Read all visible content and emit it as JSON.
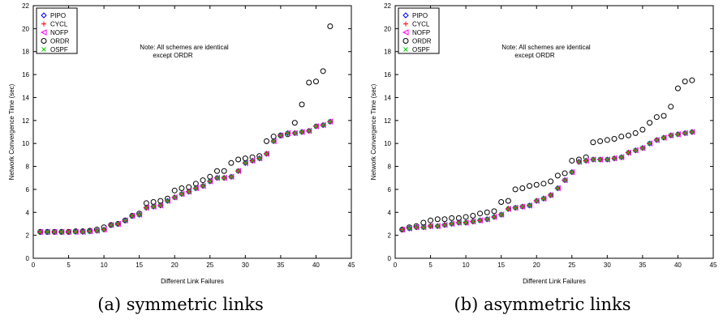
{
  "chart_data": [
    {
      "type": "scatter",
      "caption": "(a) symmetric links",
      "xlabel": "Different Link Failures",
      "ylabel": "Network Convergence Time (sec)",
      "xlim": [
        0,
        45
      ],
      "ylim": [
        0,
        22
      ],
      "xticks": [
        0,
        5,
        10,
        15,
        20,
        25,
        30,
        35,
        40,
        45
      ],
      "yticks": [
        0,
        2,
        4,
        6,
        8,
        10,
        12,
        14,
        16,
        18,
        20,
        22
      ],
      "note": [
        "Note: All schemes are identical",
        "except ORDR"
      ],
      "legend_position": "top-left",
      "x": [
        1,
        2,
        3,
        4,
        5,
        6,
        7,
        8,
        9,
        10,
        11,
        12,
        13,
        14,
        15,
        16,
        17,
        18,
        19,
        20,
        21,
        22,
        23,
        24,
        25,
        26,
        27,
        28,
        29,
        30,
        31,
        32,
        33,
        34,
        35,
        36,
        37,
        38,
        39,
        40,
        41,
        42
      ],
      "series": [
        {
          "name": "PIPO",
          "marker": "diamond",
          "color": "#0000ff",
          "values": [
            2.3,
            2.3,
            2.3,
            2.3,
            2.3,
            2.3,
            2.3,
            2.35,
            2.4,
            2.5,
            2.9,
            3.0,
            3.3,
            3.7,
            3.8,
            4.4,
            4.5,
            4.6,
            5.0,
            5.3,
            5.6,
            5.8,
            6.1,
            6.3,
            6.7,
            7.0,
            7.0,
            7.1,
            7.6,
            8.3,
            8.5,
            8.7,
            9.1,
            10.2,
            10.7,
            10.9,
            10.9,
            11.0,
            11.1,
            11.5,
            11.6,
            11.9
          ]
        },
        {
          "name": "CYCL",
          "marker": "plus",
          "color": "#ff0000",
          "values": [
            2.3,
            2.3,
            2.3,
            2.3,
            2.3,
            2.3,
            2.3,
            2.35,
            2.4,
            2.5,
            2.9,
            3.0,
            3.3,
            3.7,
            3.8,
            4.4,
            4.5,
            4.6,
            5.0,
            5.3,
            5.6,
            5.8,
            6.1,
            6.3,
            6.7,
            7.0,
            7.0,
            7.1,
            7.6,
            8.3,
            8.5,
            8.7,
            9.1,
            10.2,
            10.7,
            10.9,
            10.9,
            11.0,
            11.1,
            11.5,
            11.6,
            11.9
          ]
        },
        {
          "name": "NOFP",
          "marker": "triangle-left",
          "color": "#ff00ff",
          "values": [
            2.3,
            2.3,
            2.3,
            2.3,
            2.3,
            2.3,
            2.3,
            2.35,
            2.4,
            2.5,
            2.9,
            3.0,
            3.3,
            3.7,
            3.8,
            4.4,
            4.5,
            4.6,
            5.0,
            5.3,
            5.6,
            5.8,
            6.1,
            6.3,
            6.7,
            7.0,
            7.0,
            7.1,
            7.6,
            8.3,
            8.5,
            8.7,
            9.1,
            10.2,
            10.7,
            10.9,
            10.9,
            11.0,
            11.1,
            11.5,
            11.6,
            11.9
          ]
        },
        {
          "name": "ORDR",
          "marker": "circle",
          "color": "#000000",
          "values": [
            2.3,
            2.3,
            2.3,
            2.3,
            2.3,
            2.35,
            2.35,
            2.4,
            2.5,
            2.7,
            2.9,
            3.0,
            3.3,
            3.7,
            3.9,
            4.8,
            4.9,
            5.0,
            5.2,
            5.9,
            6.1,
            6.2,
            6.5,
            6.8,
            7.1,
            7.6,
            7.6,
            8.3,
            8.6,
            8.7,
            8.8,
            8.9,
            10.2,
            10.6,
            10.7,
            10.8,
            11.8,
            13.4,
            15.3,
            15.4,
            16.3,
            20.2
          ]
        },
        {
          "name": "OSPF",
          "marker": "x",
          "color": "#00cc00",
          "values": [
            2.3,
            2.3,
            2.3,
            2.3,
            2.3,
            2.3,
            2.3,
            2.35,
            2.4,
            2.5,
            2.9,
            3.0,
            3.3,
            3.7,
            3.8,
            4.4,
            4.5,
            4.6,
            5.0,
            5.3,
            5.6,
            5.8,
            6.1,
            6.3,
            6.7,
            7.0,
            7.0,
            7.1,
            7.6,
            8.3,
            8.5,
            8.7,
            9.1,
            10.2,
            10.7,
            10.9,
            10.9,
            11.0,
            11.1,
            11.5,
            11.6,
            11.9
          ]
        }
      ]
    },
    {
      "type": "scatter",
      "caption": "(b) asymmetric links",
      "xlabel": "Different Link Failures",
      "ylabel": "Network Convergence Time (sec)",
      "xlim": [
        0,
        45
      ],
      "ylim": [
        0,
        22
      ],
      "xticks": [
        0,
        5,
        10,
        15,
        20,
        25,
        30,
        35,
        40,
        45
      ],
      "yticks": [
        0,
        2,
        4,
        6,
        8,
        10,
        12,
        14,
        16,
        18,
        20,
        22
      ],
      "note": [
        "Note: All schemes are identical",
        "except ORDR"
      ],
      "legend_position": "top-left",
      "x": [
        1,
        2,
        3,
        4,
        5,
        6,
        7,
        8,
        9,
        10,
        11,
        12,
        13,
        14,
        15,
        16,
        17,
        18,
        19,
        20,
        21,
        22,
        23,
        24,
        25,
        26,
        27,
        28,
        29,
        30,
        31,
        32,
        33,
        34,
        35,
        36,
        37,
        38,
        39,
        40,
        41,
        42
      ],
      "series": [
        {
          "name": "PIPO",
          "marker": "diamond",
          "color": "#0000ff",
          "values": [
            2.5,
            2.6,
            2.7,
            2.7,
            2.8,
            2.8,
            2.9,
            3.0,
            3.1,
            3.1,
            3.2,
            3.3,
            3.4,
            3.6,
            3.8,
            4.3,
            4.4,
            4.5,
            4.6,
            5.0,
            5.2,
            5.5,
            6.1,
            6.8,
            7.5,
            8.4,
            8.5,
            8.6,
            8.6,
            8.6,
            8.7,
            8.8,
            9.2,
            9.4,
            9.6,
            10.0,
            10.3,
            10.5,
            10.7,
            10.8,
            10.9,
            11.0
          ]
        },
        {
          "name": "CYCL",
          "marker": "plus",
          "color": "#ff0000",
          "values": [
            2.5,
            2.6,
            2.7,
            2.7,
            2.8,
            2.8,
            2.9,
            3.0,
            3.1,
            3.1,
            3.2,
            3.3,
            3.4,
            3.6,
            3.8,
            4.3,
            4.4,
            4.5,
            4.6,
            5.0,
            5.2,
            5.5,
            6.1,
            6.8,
            7.5,
            8.4,
            8.5,
            8.6,
            8.6,
            8.6,
            8.7,
            8.8,
            9.2,
            9.4,
            9.6,
            10.0,
            10.3,
            10.5,
            10.7,
            10.8,
            10.9,
            11.0
          ]
        },
        {
          "name": "NOFP",
          "marker": "triangle-left",
          "color": "#ff00ff",
          "values": [
            2.5,
            2.6,
            2.7,
            2.7,
            2.8,
            2.8,
            2.9,
            3.0,
            3.1,
            3.1,
            3.2,
            3.3,
            3.4,
            3.6,
            3.8,
            4.3,
            4.4,
            4.5,
            4.6,
            5.0,
            5.2,
            5.5,
            6.1,
            6.8,
            7.5,
            8.4,
            8.5,
            8.6,
            8.6,
            8.6,
            8.7,
            8.8,
            9.2,
            9.4,
            9.6,
            10.0,
            10.3,
            10.5,
            10.7,
            10.8,
            10.9,
            11.0
          ]
        },
        {
          "name": "ORDR",
          "marker": "circle",
          "color": "#000000",
          "values": [
            2.5,
            2.7,
            2.8,
            3.1,
            3.3,
            3.4,
            3.4,
            3.5,
            3.5,
            3.6,
            3.7,
            3.9,
            4.0,
            4.1,
            4.9,
            5.0,
            6.0,
            6.1,
            6.3,
            6.4,
            6.5,
            6.7,
            7.2,
            7.4,
            8.5,
            8.6,
            8.8,
            10.1,
            10.2,
            10.3,
            10.4,
            10.6,
            10.7,
            10.9,
            11.2,
            11.8,
            12.3,
            12.4,
            13.2,
            14.8,
            15.4,
            15.5
          ]
        },
        {
          "name": "OSPF",
          "marker": "x",
          "color": "#00cc00",
          "values": [
            2.5,
            2.6,
            2.7,
            2.7,
            2.8,
            2.8,
            2.9,
            3.0,
            3.1,
            3.1,
            3.2,
            3.3,
            3.4,
            3.6,
            3.8,
            4.3,
            4.4,
            4.5,
            4.6,
            5.0,
            5.2,
            5.5,
            6.1,
            6.8,
            7.5,
            8.4,
            8.5,
            8.6,
            8.6,
            8.6,
            8.7,
            8.8,
            9.2,
            9.4,
            9.6,
            10.0,
            10.3,
            10.5,
            10.7,
            10.8,
            10.9,
            11.0
          ]
        }
      ]
    }
  ]
}
